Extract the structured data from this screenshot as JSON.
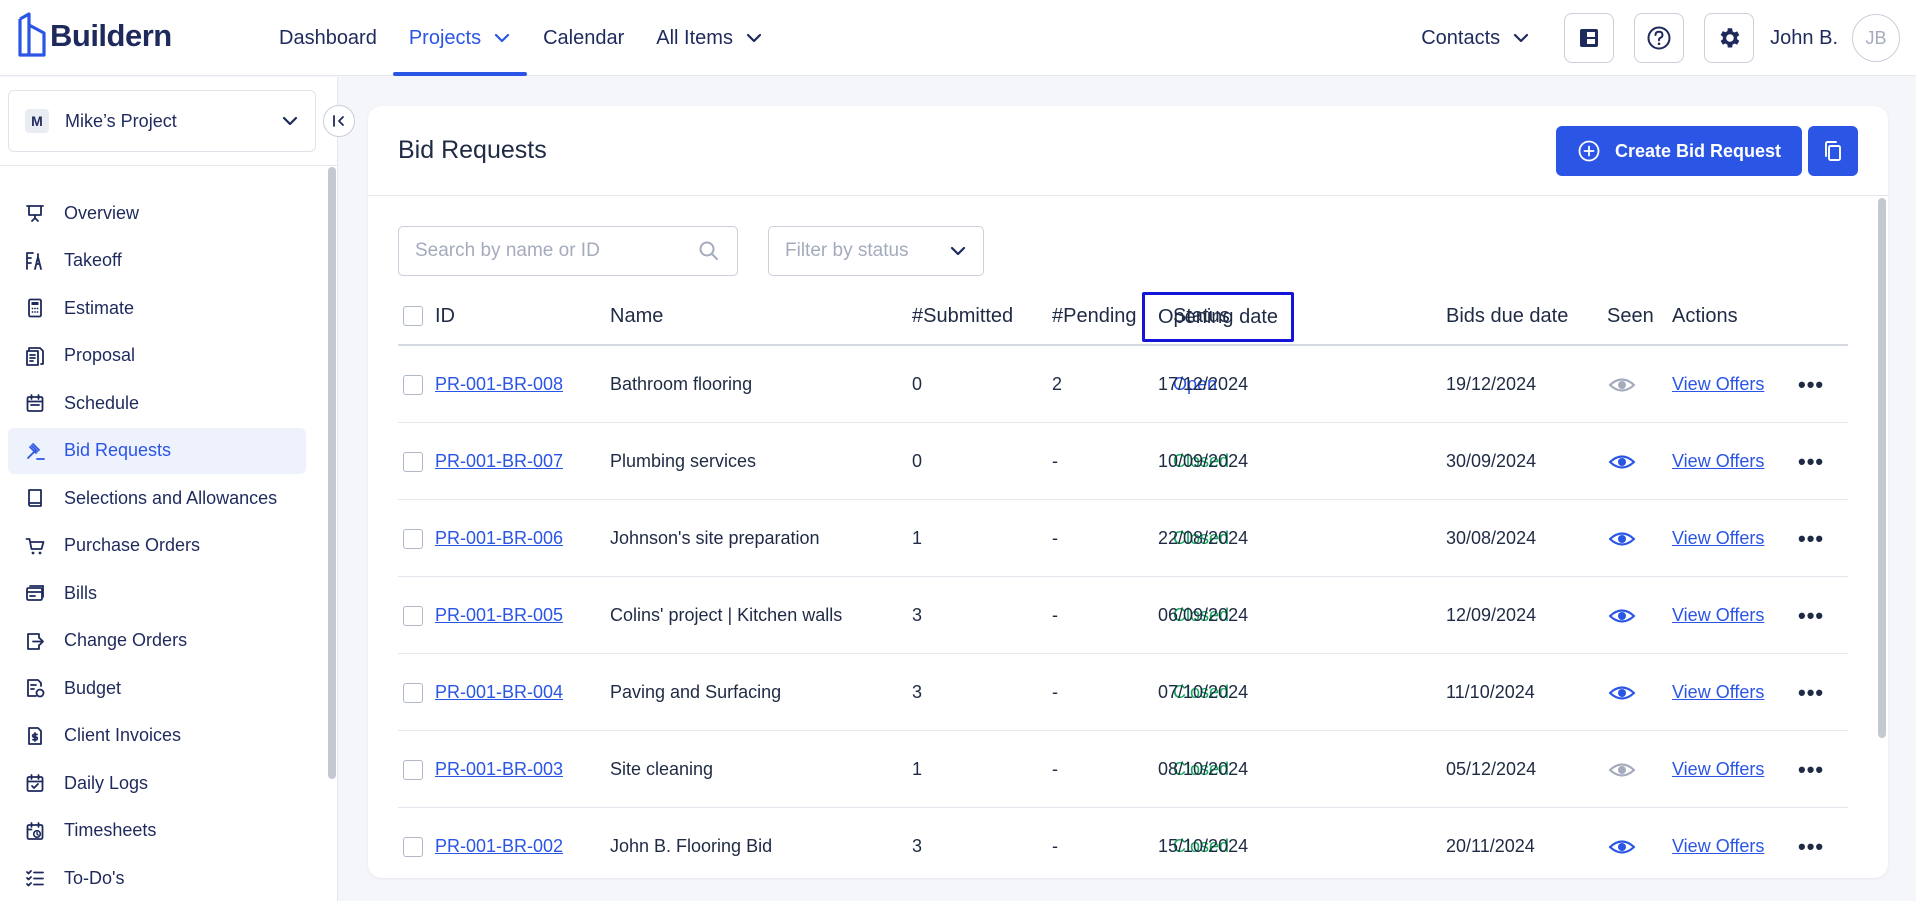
{
  "brand": {
    "name": "Buildern"
  },
  "nav": {
    "items": [
      {
        "label": "Dashboard",
        "active": false,
        "dropdown": false
      },
      {
        "label": "Projects",
        "active": true,
        "dropdown": true
      },
      {
        "label": "Calendar",
        "active": false,
        "dropdown": false
      },
      {
        "label": "All Items",
        "active": false,
        "dropdown": true
      }
    ],
    "contacts_label": "Contacts",
    "user_name": "John B.",
    "user_initials": "JB"
  },
  "sidebar": {
    "project_initial": "M",
    "project_name": "Mike’s Project",
    "items": [
      {
        "label": "Overview",
        "icon": "presentation-icon"
      },
      {
        "label": "Takeoff",
        "icon": "takeoff-icon"
      },
      {
        "label": "Estimate",
        "icon": "calculator-icon"
      },
      {
        "label": "Proposal",
        "icon": "document-icon"
      },
      {
        "label": "Schedule",
        "icon": "calendar-icon"
      },
      {
        "label": "Bid Requests",
        "icon": "gavel-icon",
        "active": true
      },
      {
        "label": "Selections and Allowances",
        "icon": "book-icon"
      },
      {
        "label": "Purchase Orders",
        "icon": "cart-icon"
      },
      {
        "label": "Bills",
        "icon": "bill-icon"
      },
      {
        "label": "Change Orders",
        "icon": "change-order-icon"
      },
      {
        "label": "Budget",
        "icon": "budget-icon"
      },
      {
        "label": "Client Invoices",
        "icon": "invoice-icon"
      },
      {
        "label": "Daily Logs",
        "icon": "daily-log-icon"
      },
      {
        "label": "Timesheets",
        "icon": "timesheet-icon"
      },
      {
        "label": "To-Do's",
        "icon": "checklist-icon"
      }
    ]
  },
  "main": {
    "title": "Bid Requests",
    "create_button": "Create Bid Request",
    "search_placeholder": "Search by name or ID",
    "filter_placeholder": "Filter by status",
    "columns": {
      "id": "ID",
      "name": "Name",
      "submitted": "#Submitted",
      "pending": "#Pending",
      "status": "Status",
      "opening": "Opening date",
      "due": "Bids due date",
      "seen": "Seen",
      "actions": "Actions"
    },
    "rows": [
      {
        "id": "PR-001-BR-008",
        "name": "Bathroom flooring",
        "submitted": "0",
        "pending": "2",
        "status": "Open",
        "opening": "17/12/2024",
        "due": "19/12/2024",
        "seen": false,
        "action": "View Offers"
      },
      {
        "id": "PR-001-BR-007",
        "name": "Plumbing services",
        "submitted": "0",
        "pending": "-",
        "status": "Closed",
        "opening": "10/09/2024",
        "due": "30/09/2024",
        "seen": true,
        "action": "View Offers"
      },
      {
        "id": "PR-001-BR-006",
        "name": "Johnson's site preparation",
        "submitted": "1",
        "pending": "-",
        "status": "Closed",
        "opening": "22/08/2024",
        "due": "30/08/2024",
        "seen": true,
        "action": "View Offers"
      },
      {
        "id": "PR-001-BR-005",
        "name": "Colins' project | Kitchen walls",
        "submitted": "3",
        "pending": "-",
        "status": "Closed",
        "opening": "06/09/2024",
        "due": "12/09/2024",
        "seen": true,
        "action": "View Offers"
      },
      {
        "id": "PR-001-BR-004",
        "name": "Paving and Surfacing",
        "submitted": "3",
        "pending": "-",
        "status": "Closed",
        "opening": "07/10/2024",
        "due": "11/10/2024",
        "seen": true,
        "action": "View Offers"
      },
      {
        "id": "PR-001-BR-003",
        "name": "Site cleaning",
        "submitted": "1",
        "pending": "-",
        "status": "Closed",
        "opening": "08/10/2024",
        "due": "05/12/2024",
        "seen": false,
        "action": "View Offers"
      },
      {
        "id": "PR-001-BR-002",
        "name": "John B. Flooring Bid",
        "submitted": "3",
        "pending": "-",
        "status": "Closed",
        "opening": "15/10/2024",
        "due": "20/11/2024",
        "seen": true,
        "action": "View Offers"
      }
    ]
  },
  "colors": {
    "accent": "#2a55e5",
    "status_open": "#2a55e5",
    "status_closed": "#14a85a",
    "highlight_border": "#1414d8"
  }
}
